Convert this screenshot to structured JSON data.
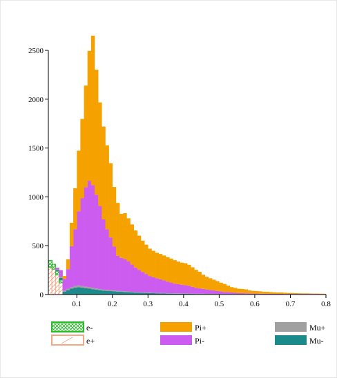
{
  "chart_data": {
    "type": "bar",
    "stacked": true,
    "title": "",
    "xlabel": "",
    "ylabel": "",
    "xlim": [
      0.02,
      0.8
    ],
    "ylim": [
      0,
      2500
    ],
    "x_ticks": [
      0.1,
      0.2,
      0.3,
      0.4,
      0.5,
      0.6,
      0.7,
      0.8
    ],
    "x_tick_labels": [
      "0.1",
      "0.2",
      "0.3",
      "0.4",
      "0.5",
      "0.6",
      "0.7",
      "0.8"
    ],
    "y_ticks": [
      0,
      500,
      1000,
      1500,
      2000,
      2500
    ],
    "y_tick_labels": [
      "0",
      "500",
      "1000",
      "1500",
      "2000",
      "2500"
    ],
    "bin_width": 0.01,
    "bin_start": 0.02,
    "grid": false,
    "legend_position": "bottom",
    "series": [
      {
        "name": "e+",
        "color": "#f4a582",
        "pattern": "diagonal",
        "values": [
          280,
          260,
          200,
          120,
          0,
          0,
          0,
          0,
          0,
          0,
          0,
          0,
          0,
          0,
          0,
          0,
          0,
          0,
          0,
          0,
          0,
          0,
          0,
          0,
          0,
          0,
          0,
          0,
          0,
          0,
          0,
          0,
          0,
          0,
          0,
          0,
          0,
          0,
          0,
          0,
          0,
          0,
          0,
          0,
          0,
          0,
          0,
          0,
          0,
          0,
          0,
          0,
          0,
          0,
          0,
          0,
          0,
          0,
          0,
          0,
          0,
          0,
          0,
          0,
          0,
          0,
          0,
          0,
          0,
          0,
          0,
          0,
          0,
          0,
          0,
          0,
          0,
          0
        ]
      },
      {
        "name": "e-",
        "color": "#2db82d",
        "pattern": "crosshatch",
        "values": [
          70,
          50,
          40,
          30,
          0,
          0,
          0,
          0,
          0,
          0,
          0,
          0,
          0,
          0,
          0,
          0,
          0,
          0,
          0,
          0,
          0,
          0,
          0,
          0,
          0,
          0,
          0,
          0,
          0,
          0,
          0,
          0,
          0,
          0,
          0,
          0,
          0,
          0,
          0,
          0,
          0,
          0,
          0,
          0,
          0,
          0,
          0,
          0,
          0,
          0,
          0,
          0,
          0,
          0,
          0,
          0,
          0,
          0,
          0,
          0,
          0,
          0,
          0,
          0,
          0,
          0,
          0,
          0,
          0,
          0,
          0,
          0,
          0,
          0,
          0,
          0,
          0,
          0
        ]
      },
      {
        "name": "Mu-",
        "color": "#1a8a8a",
        "values": [
          0,
          0,
          10,
          20,
          30,
          45,
          60,
          70,
          75,
          70,
          65,
          60,
          55,
          50,
          45,
          40,
          38,
          35,
          32,
          30,
          28,
          26,
          24,
          22,
          20,
          18,
          17,
          16,
          15,
          14,
          13,
          12,
          11,
          10,
          10,
          9,
          9,
          8,
          8,
          7,
          7,
          6,
          6,
          6,
          5,
          5,
          5,
          5,
          4,
          4,
          4,
          4,
          4,
          3,
          3,
          3,
          3,
          3,
          3,
          3,
          2,
          2,
          2,
          2,
          2,
          2,
          2,
          2,
          2,
          2,
          2,
          2,
          2,
          2,
          2,
          2,
          2,
          2
        ]
      },
      {
        "name": "Mu+",
        "color": "#a0a0a0",
        "values": [
          0,
          0,
          5,
          10,
          10,
          15,
          15,
          18,
          18,
          18,
          15,
          15,
          15,
          12,
          12,
          10,
          10,
          10,
          9,
          8,
          8,
          7,
          7,
          6,
          6,
          5,
          5,
          5,
          5,
          4,
          4,
          4,
          4,
          3,
          3,
          3,
          3,
          3,
          3,
          3,
          2,
          2,
          2,
          2,
          2,
          2,
          2,
          2,
          2,
          2,
          2,
          2,
          2,
          2,
          2,
          2,
          1,
          1,
          1,
          1,
          1,
          1,
          1,
          1,
          1,
          1,
          1,
          1,
          1,
          1,
          1,
          1,
          1,
          1,
          1,
          1,
          1,
          1
        ]
      },
      {
        "name": "Pi-",
        "color": "#cc5cf0",
        "values": [
          0,
          0,
          20,
          70,
          120,
          200,
          420,
          580,
          760,
          900,
          1020,
          1090,
          1050,
          960,
          850,
          720,
          620,
          540,
          450,
          360,
          340,
          330,
          310,
          280,
          250,
          230,
          210,
          190,
          170,
          160,
          150,
          140,
          130,
          120,
          110,
          100,
          95,
          90,
          85,
          80,
          70,
          60,
          55,
          50,
          45,
          40,
          35,
          30,
          25,
          20,
          20,
          15,
          12,
          10,
          10,
          8,
          8,
          6,
          6,
          5,
          5,
          5,
          4,
          4,
          4,
          4,
          3,
          3,
          3,
          3,
          3,
          3,
          3,
          3,
          3,
          3,
          3,
          3
        ]
      },
      {
        "name": "Pi+",
        "color": "#f5a200",
        "values": [
          0,
          0,
          0,
          0,
          30,
          100,
          240,
          420,
          620,
          810,
          1040,
          1330,
          1530,
          1280,
          1060,
          950,
          860,
          760,
          610,
          540,
          450,
          470,
          440,
          410,
          380,
          350,
          320,
          300,
          280,
          270,
          260,
          260,
          255,
          250,
          245,
          240,
          230,
          225,
          225,
          215,
          200,
          185,
          170,
          145,
          130,
          120,
          110,
          100,
          90,
          82,
          65,
          55,
          50,
          44,
          42,
          40,
          30,
          28,
          26,
          24,
          20,
          20,
          18,
          15,
          14,
          14,
          12,
          10,
          10,
          8,
          7,
          6,
          6,
          5,
          4,
          4,
          3,
          2
        ]
      }
    ]
  },
  "legend": {
    "items": [
      {
        "label": "e-",
        "color": "#2db82d",
        "pattern": "crosshatch"
      },
      {
        "label": "e+",
        "color": "#f4a582",
        "pattern": "diagonal"
      },
      {
        "label": "Pi+",
        "color": "#f5a200",
        "pattern": "solid"
      },
      {
        "label": "Pi-",
        "color": "#cc5cf0",
        "pattern": "solid"
      },
      {
        "label": "Mu+",
        "color": "#a0a0a0",
        "pattern": "solid"
      },
      {
        "label": "Mu-",
        "color": "#1a8a8a",
        "pattern": "solid"
      }
    ]
  }
}
